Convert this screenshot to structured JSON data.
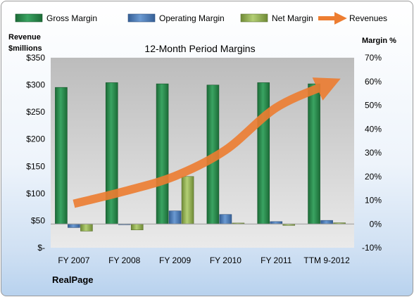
{
  "chart_data": {
    "type": "bar",
    "title": "12-Month Period Margins",
    "company_label": "RealPage",
    "left_axis": {
      "title_line1": "Revenue",
      "title_line2": "$millions",
      "ticks": [
        "$-",
        "$50",
        "$100",
        "$150",
        "$200",
        "$250",
        "$300",
        "$350"
      ],
      "ylim": [
        0,
        350
      ]
    },
    "right_axis": {
      "title": "Margin %",
      "ticks": [
        "-10%",
        "0%",
        "10%",
        "20%",
        "30%",
        "40%",
        "50%",
        "60%",
        "70%"
      ],
      "ylim": [
        -10,
        70
      ]
    },
    "categories": [
      "FY 2007",
      "FY 2008",
      "FY 2009",
      "FY 2010",
      "FY 2011",
      "TTM 9-2012"
    ],
    "series": [
      {
        "name": "Gross Margin",
        "type": "bar",
        "axis": "right",
        "color": "#2e8b4e",
        "values": [
          57.5,
          59.5,
          59,
          58.5,
          59.5,
          59
        ]
      },
      {
        "name": "Operating Margin",
        "type": "bar",
        "axis": "right",
        "color": "#4f81bd",
        "values": [
          -1.5,
          -0.3,
          5.5,
          4,
          1,
          1.5
        ]
      },
      {
        "name": "Net Margin",
        "type": "bar",
        "axis": "right",
        "color": "#9bbb59",
        "values": [
          -3,
          -2.5,
          20,
          0.4,
          -0.6,
          0.5
        ]
      },
      {
        "name": "Revenues",
        "type": "line",
        "axis": "left",
        "color": "#f79646",
        "values": [
          81,
          104,
          132,
          180,
          258,
          300
        ]
      }
    ],
    "legend_position": "top",
    "grid": false
  }
}
